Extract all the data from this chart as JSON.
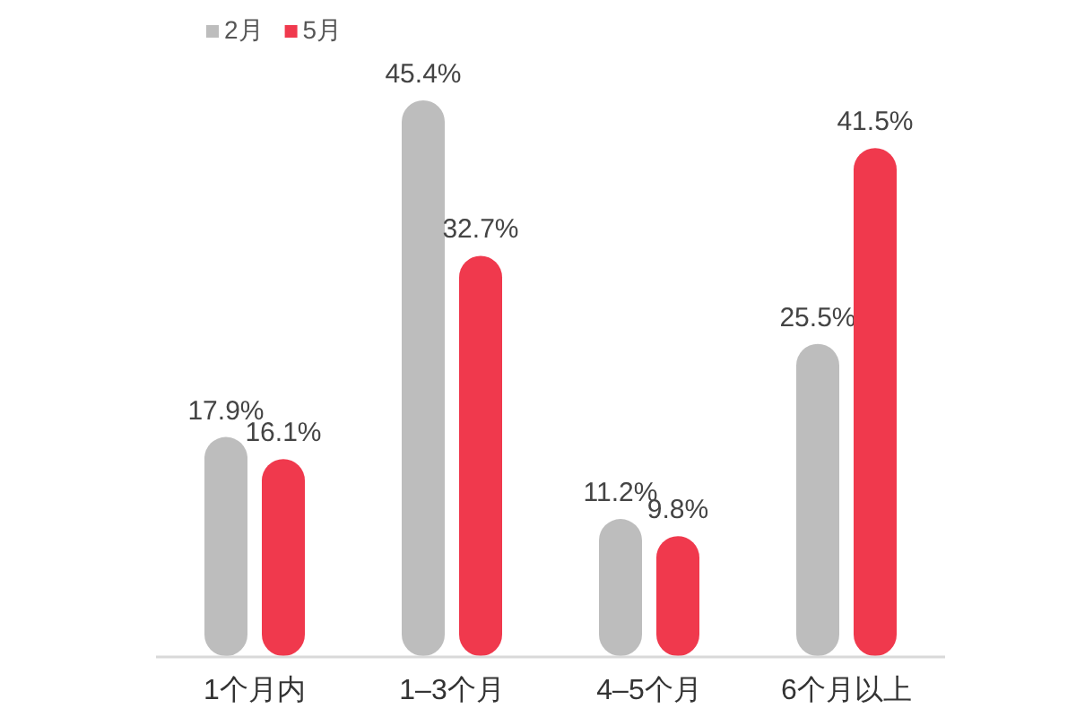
{
  "chart_data": {
    "type": "bar",
    "categories": [
      "1个月内",
      "1–3个月",
      "4–5个月",
      "6个月以上"
    ],
    "series": [
      {
        "name": "2月",
        "color": "#bdbdbd",
        "values": [
          17.9,
          45.4,
          11.2,
          25.5
        ],
        "value_labels": [
          "17.9%",
          "45.4%",
          "11.2%",
          "25.5%"
        ]
      },
      {
        "name": "5月",
        "color": "#f0394d",
        "values": [
          16.1,
          32.7,
          9.8,
          41.5
        ],
        "value_labels": [
          "16.1%",
          "32.7%",
          "9.8%",
          "41.5%"
        ]
      }
    ],
    "legend": "top left"
  }
}
